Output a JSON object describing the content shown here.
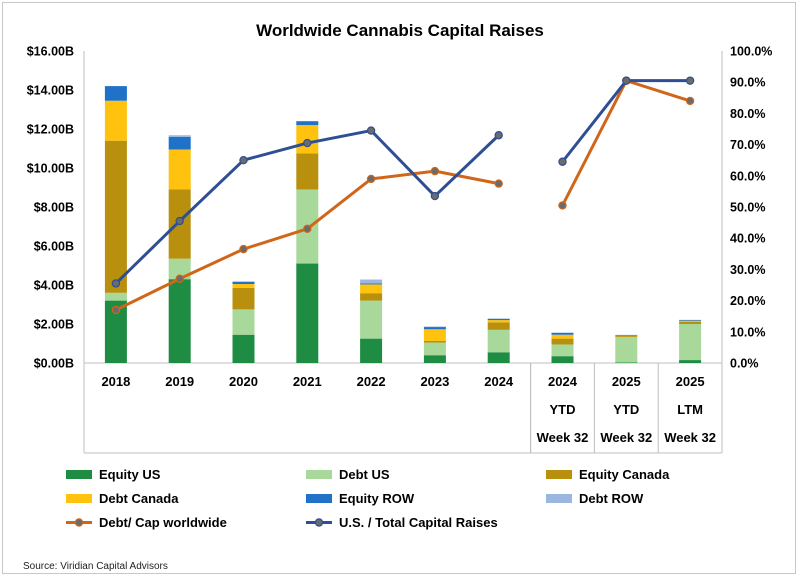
{
  "chart_data": {
    "type": "bar",
    "title": "Worldwide Cannabis Capital Raises",
    "categories": [
      [
        "2018"
      ],
      [
        "2019"
      ],
      [
        "2020"
      ],
      [
        "2021"
      ],
      [
        "2022"
      ],
      [
        "2023"
      ],
      [
        "2024"
      ],
      [
        "2024",
        "YTD",
        "Week 32"
      ],
      [
        "2025",
        "YTD",
        "Week 32"
      ],
      [
        "2025",
        "LTM",
        "Week 32"
      ]
    ],
    "y_left": {
      "ylim": [
        0,
        16
      ],
      "ticks": [
        "$0.00B",
        "$2.00B",
        "$4.00B",
        "$6.00B",
        "$8.00B",
        "$10.00B",
        "$12.00B",
        "$14.00B",
        "$16.00B"
      ]
    },
    "y_right": {
      "ylim": [
        0,
        100
      ],
      "ticks": [
        "0.0%",
        "10.0%",
        "20.0%",
        "30.0%",
        "40.0%",
        "50.0%",
        "60.0%",
        "70.0%",
        "80.0%",
        "90.0%",
        "100.0%"
      ]
    },
    "bar_series": [
      {
        "name": "Equity US",
        "color": "#1e8c43",
        "values": [
          3.2,
          4.3,
          1.45,
          5.1,
          1.25,
          0.4,
          0.55,
          0.35,
          0.03,
          0.15
        ]
      },
      {
        "name": "Debt US",
        "color": "#a8d89a",
        "values": [
          0.4,
          1.05,
          1.3,
          3.8,
          1.95,
          0.65,
          1.15,
          0.6,
          1.3,
          1.85
        ]
      },
      {
        "name": "Equity Canada",
        "color": "#b8900e",
        "values": [
          7.8,
          3.55,
          1.1,
          1.85,
          0.38,
          0.08,
          0.38,
          0.3,
          0.05,
          0.12
        ]
      },
      {
        "name": "Debt Canada",
        "color": "#ffc20e",
        "values": [
          2.05,
          2.05,
          0.2,
          1.45,
          0.45,
          0.6,
          0.12,
          0.2,
          0.04,
          0.05
        ]
      },
      {
        "name": "Equity ROW",
        "color": "#1f72c8",
        "values": [
          0.75,
          0.65,
          0.12,
          0.2,
          0.05,
          0.12,
          0.07,
          0.1,
          0.02,
          0.04
        ]
      },
      {
        "name": "Debt ROW",
        "color": "#9bb7e0",
        "values": [
          0,
          0.08,
          0,
          0,
          0.2,
          0.02,
          0,
          0,
          0,
          0
        ]
      }
    ],
    "line_series": [
      {
        "name": "Debt/ Cap worldwide",
        "color": "#d0661a",
        "values": [
          17,
          27,
          36.5,
          43,
          59,
          61.5,
          57.5,
          50.5,
          90.5,
          84
        ]
      },
      {
        "name": "U.S. / Total Capital Raises",
        "color": "#2e4f93",
        "values": [
          25.5,
          45.5,
          65,
          70.5,
          74.5,
          53.5,
          73,
          64.5,
          90.5,
          90.5
        ]
      }
    ],
    "line_gaps_after_index": [
      6
    ],
    "legend_position": "bottom",
    "grid": false
  },
  "legend_items": [
    {
      "label": "Equity US",
      "color": "#1e8c43",
      "kind": "bar"
    },
    {
      "label": "Debt US",
      "color": "#a8d89a",
      "kind": "bar"
    },
    {
      "label": "Equity Canada",
      "color": "#b8900e",
      "kind": "bar"
    },
    {
      "label": "Debt Canada",
      "color": "#ffc20e",
      "kind": "bar"
    },
    {
      "label": "Equity ROW",
      "color": "#1f72c8",
      "kind": "bar"
    },
    {
      "label": "Debt ROW",
      "color": "#9bb7e0",
      "kind": "bar"
    },
    {
      "label": "Debt/ Cap worldwide",
      "color": "#d0661a",
      "kind": "line"
    },
    {
      "label": "U.S. / Total Capital Raises",
      "color": "#2e4f93",
      "kind": "line"
    }
  ],
  "source": "Source: Viridian Capital Advisors"
}
